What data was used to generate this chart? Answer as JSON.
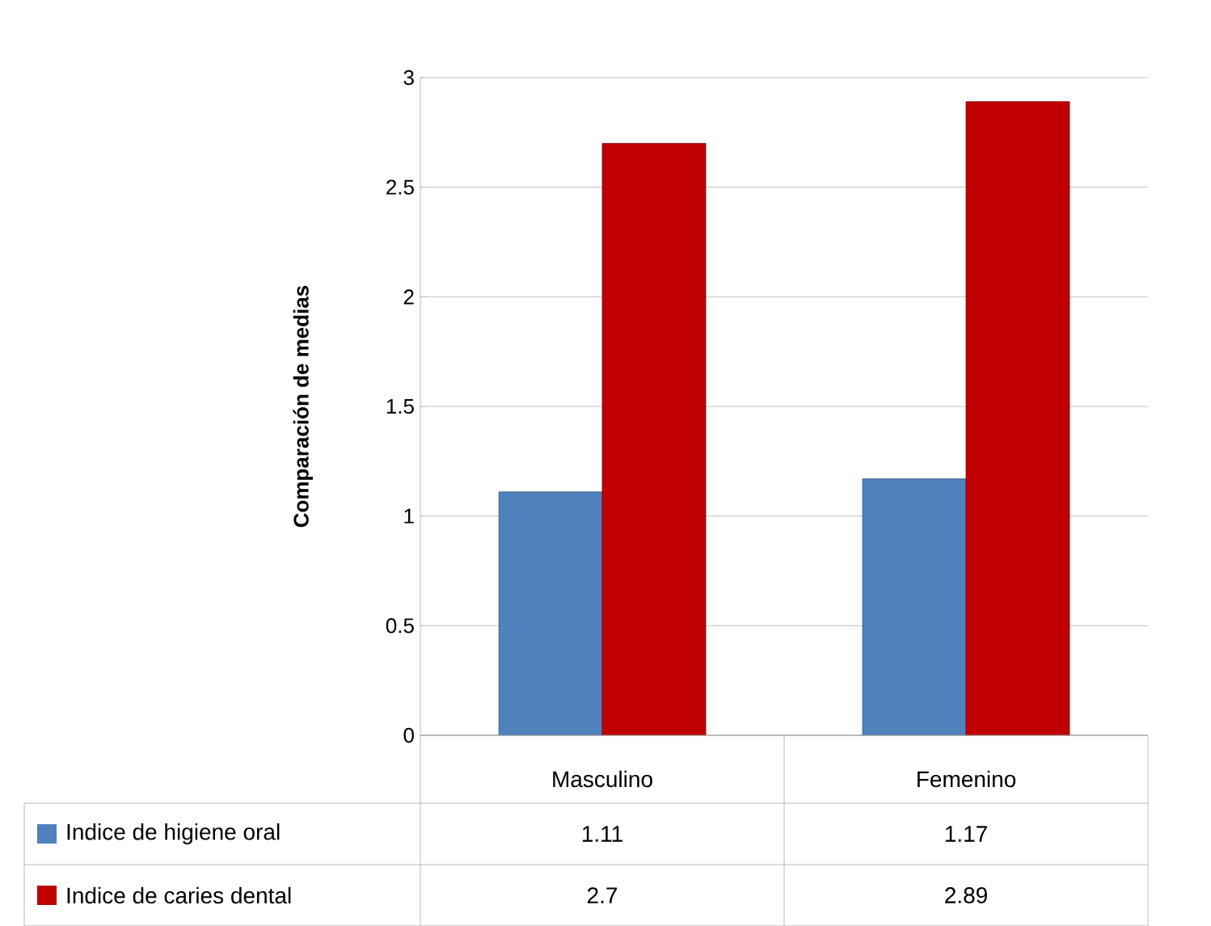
{
  "chart_data": {
    "type": "bar",
    "ylabel": "Comparación de medias",
    "categories": [
      "Masculino",
      "Femenino"
    ],
    "series": [
      {
        "name": "Indice de higiene oral",
        "color": "#4f81bd",
        "values": [
          1.11,
          1.17
        ]
      },
      {
        "name": "Indice de caries dental",
        "color": "#c00000",
        "values": [
          2.7,
          2.89
        ]
      }
    ],
    "ylim": [
      0,
      3
    ],
    "yticks": [
      0,
      0.5,
      1,
      1.5,
      2,
      2.5,
      3
    ],
    "grid": "y",
    "legend": "bottom",
    "data_labels": true
  }
}
